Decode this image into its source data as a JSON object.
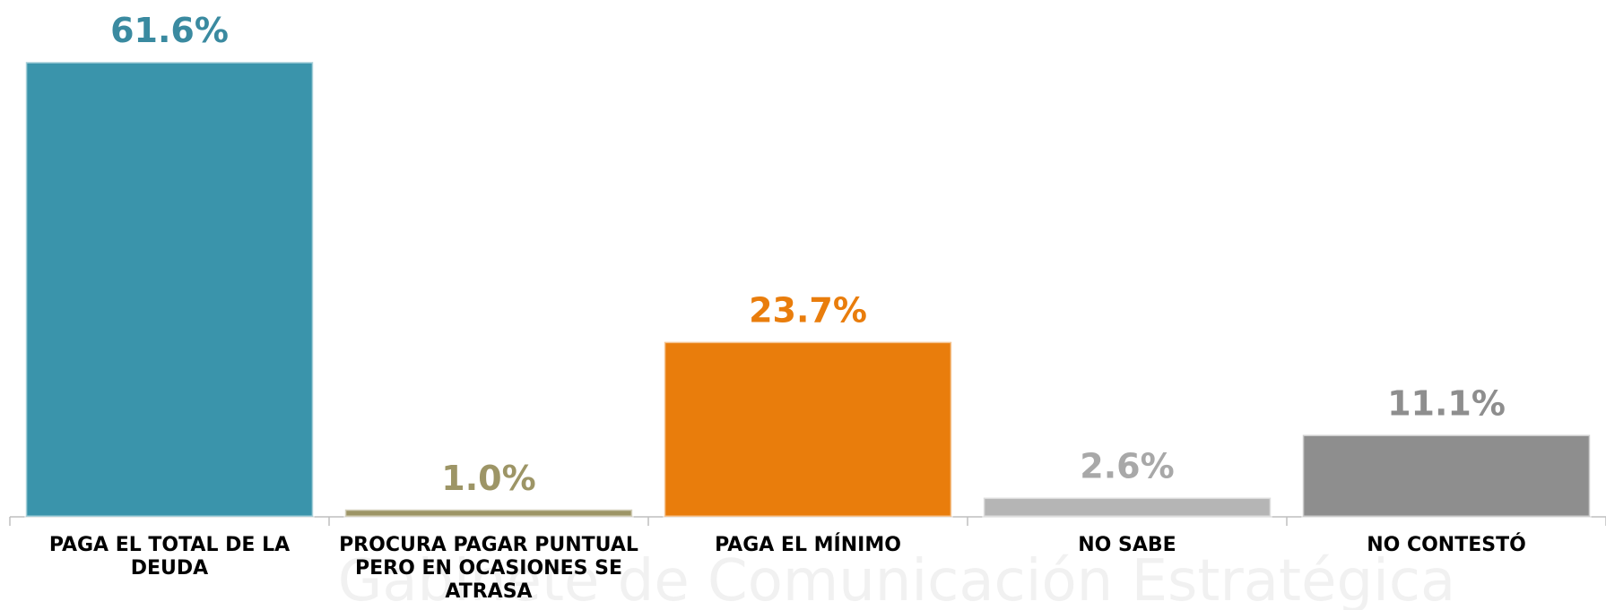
{
  "chart_data": {
    "type": "bar",
    "categories": [
      "PAGA EL TOTAL DE LA DEUDA",
      "PROCURA PAGAR PUNTUAL PERO EN OCASIONES SE ATRASA",
      "PAGA EL MÍNIMO",
      "NO SABE",
      "NO CONTESTÓ"
    ],
    "values": [
      61.6,
      1.0,
      23.7,
      2.6,
      11.1
    ],
    "value_labels": [
      "61.6%",
      "1.0%",
      "23.7%",
      "2.6%",
      "11.1%"
    ],
    "colors": [
      "#3a94ab",
      "#9d9566",
      "#e97d0c",
      "#b5b5b5",
      "#8e8e8e"
    ],
    "label_colors": [
      "#3a8aa0",
      "#9d9566",
      "#e97d0c",
      "#a8a8a8",
      "#8e8e8e"
    ],
    "ylim": [
      0,
      70
    ],
    "watermark": "Gabinete de Comunicación Estratégica"
  }
}
